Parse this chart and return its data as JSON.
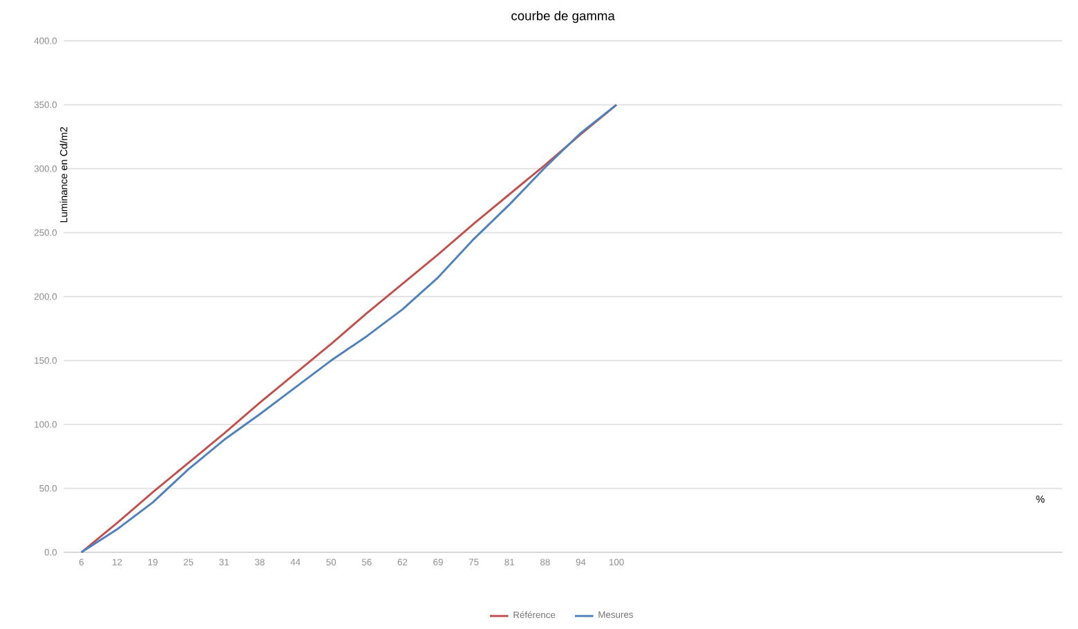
{
  "chart_data": {
    "type": "line",
    "title": "courbe de gamma",
    "xlabel": "%",
    "ylabel": "Luminance en Cd/m2",
    "categories": [
      "6",
      "12",
      "19",
      "25",
      "31",
      "38",
      "44",
      "50",
      "56",
      "62",
      "69",
      "75",
      "81",
      "88",
      "94",
      "100",
      null,
      null,
      null,
      null,
      null,
      null,
      null,
      null,
      null,
      null,
      null,
      null
    ],
    "series": [
      {
        "name": "Référence",
        "color": "#c0504d",
        "values": [
          0,
          23,
          47,
          70,
          93,
          117,
          140,
          163,
          187,
          210,
          233,
          257,
          280,
          303,
          327,
          350,
          null,
          null,
          null,
          null,
          null,
          null,
          null,
          null,
          null,
          null,
          null,
          null
        ]
      },
      {
        "name": "Mesures",
        "color": "#4f81bd",
        "values": [
          0,
          18,
          39,
          65,
          88,
          108,
          129,
          150,
          169,
          190,
          215,
          245,
          272,
          301,
          328,
          350,
          null,
          null,
          null,
          null,
          null,
          null,
          null,
          null,
          null,
          null,
          null,
          null
        ]
      }
    ],
    "ylim": [
      0,
      400
    ],
    "yticks": [
      {
        "value": 0,
        "label": "0.0"
      },
      {
        "value": 50,
        "label": "50.0"
      },
      {
        "value": 100,
        "label": "100.0"
      },
      {
        "value": 150,
        "label": "150.0"
      },
      {
        "value": 200,
        "label": "200.0"
      },
      {
        "value": 250,
        "label": "250.0"
      },
      {
        "value": 300,
        "label": "300.0"
      },
      {
        "value": 350,
        "label": "350.0"
      },
      {
        "value": 400,
        "label": "400.0"
      }
    ],
    "grid": "y",
    "legend": "bottom",
    "marker": "none",
    "line_style": "solid"
  }
}
